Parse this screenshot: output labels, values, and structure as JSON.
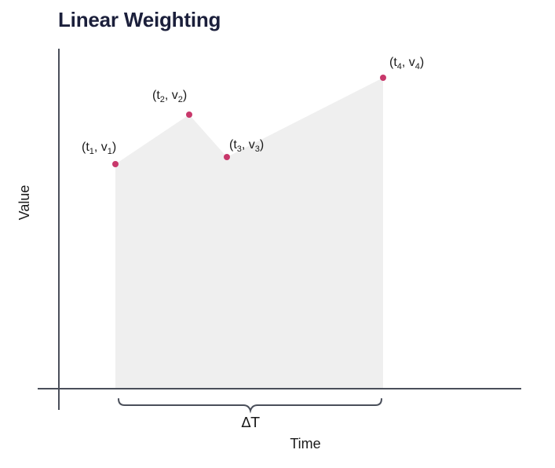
{
  "title": "Linear Weighting",
  "axes": {
    "x_label": "Time",
    "y_label": "Value"
  },
  "interval_label": "ΔT",
  "points": [
    {
      "t": "t",
      "t_sub": "1",
      "v": "v",
      "v_sub": "1"
    },
    {
      "t": "t",
      "t_sub": "2",
      "v": "v",
      "v_sub": "2"
    },
    {
      "t": "t",
      "t_sub": "3",
      "v": "v",
      "v_sub": "3"
    },
    {
      "t": "t",
      "t_sub": "4",
      "v": "v",
      "v_sub": "4"
    }
  ],
  "colors": {
    "title": "#1b1f3b",
    "axis": "#4a4f5a",
    "area_fill": "#efefef",
    "point": "#c8386b",
    "text": "#1a1a1a"
  }
}
